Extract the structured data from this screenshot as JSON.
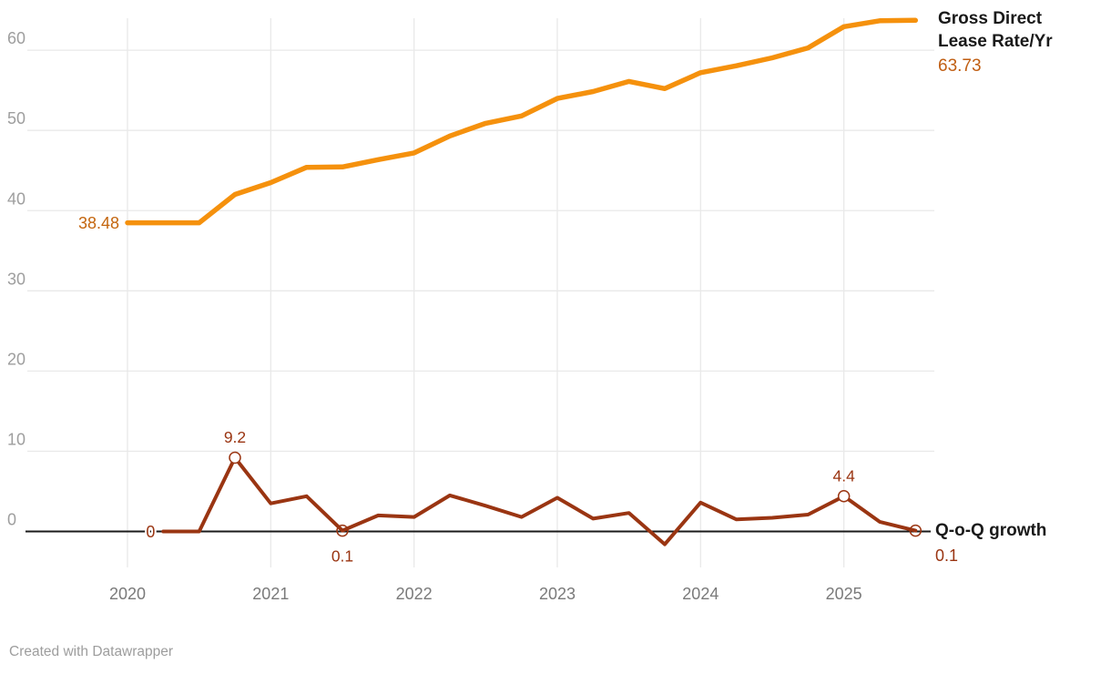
{
  "legend": {
    "gross": {
      "label": "Gross Direct Lease Rate/Yr",
      "value": "63.73"
    },
    "qoq": {
      "label": "Q-o-Q growth",
      "value": "0.1"
    }
  },
  "footer": {
    "credit": "Created with Datawrapper"
  },
  "colors": {
    "background": "#ffffff",
    "gross_line": "#F5910D",
    "gross_label": "#C4660F",
    "qoq_line": "#9A3512",
    "axis_line": "#1a1a1a",
    "grid": "#E9E9E9",
    "y_tick": "#9E9E9E",
    "x_tick": "#7A7A7A",
    "legend_text": "#1a1a1a",
    "footer_text": "#9d9d9d"
  },
  "chart_data": {
    "type": "line",
    "title": "",
    "xlabel": "",
    "ylabel": "",
    "grid": true,
    "legend_position": "right-inline",
    "x": [
      "Q1 2020",
      "Q2 2020",
      "Q3 2020",
      "Q4 2020",
      "Q1 2021",
      "Q2 2021",
      "Q3 2021",
      "Q4 2021",
      "Q1 2022",
      "Q2 2022",
      "Q3 2022",
      "Q4 2022",
      "Q1 2023",
      "Q2 2023",
      "Q3 2023",
      "Q4 2023",
      "Q1 2024",
      "Q2 2024",
      "Q3 2024",
      "Q4 2024",
      "Q1 2025",
      "Q2 2025",
      "Q3 2025"
    ],
    "x_ticks": [
      {
        "label": "2020",
        "x_index": 0
      },
      {
        "label": "2021",
        "x_index": 4
      },
      {
        "label": "2022",
        "x_index": 8
      },
      {
        "label": "2023",
        "x_index": 12
      },
      {
        "label": "2024",
        "x_index": 16
      },
      {
        "label": "2025",
        "x_index": 20
      }
    ],
    "y_ticks": [
      0,
      10,
      20,
      30,
      40,
      50,
      60
    ],
    "ylim": [
      -4,
      64
    ],
    "series": [
      {
        "name": "Gross Direct Lease Rate/Yr",
        "current_value": "63.73",
        "values": [
          38.48,
          38.48,
          38.48,
          42.02,
          43.49,
          45.4,
          45.45,
          46.36,
          47.19,
          49.31,
          50.89,
          51.81,
          53.99,
          54.85,
          56.11,
          55.21,
          57.2,
          58.06,
          59.05,
          60.29,
          62.94,
          63.67,
          63.73
        ]
      },
      {
        "name": "Q-o-Q growth",
        "current_value": "0.1",
        "values": [
          null,
          0,
          0,
          9.2,
          3.5,
          4.4,
          0.1,
          2.0,
          1.8,
          4.5,
          3.2,
          1.8,
          4.2,
          1.6,
          2.3,
          -1.6,
          3.6,
          1.5,
          1.7,
          2.1,
          4.4,
          1.2,
          0.1
        ]
      }
    ],
    "point_labels": [
      {
        "series": 0,
        "x_index": 0,
        "text": "38.48",
        "placement": "left",
        "ring": false
      },
      {
        "series": 1,
        "x_index": 1,
        "text": "0",
        "placement": "left",
        "ring": false
      },
      {
        "series": 1,
        "x_index": 3,
        "text": "9.2",
        "placement": "above",
        "ring": true
      },
      {
        "series": 1,
        "x_index": 6,
        "text": "0.1",
        "placement": "below",
        "ring": true
      },
      {
        "series": 1,
        "x_index": 20,
        "text": "4.4",
        "placement": "above",
        "ring": true
      },
      {
        "series": 1,
        "x_index": 22,
        "text": "",
        "placement": "none",
        "ring": true
      }
    ]
  }
}
